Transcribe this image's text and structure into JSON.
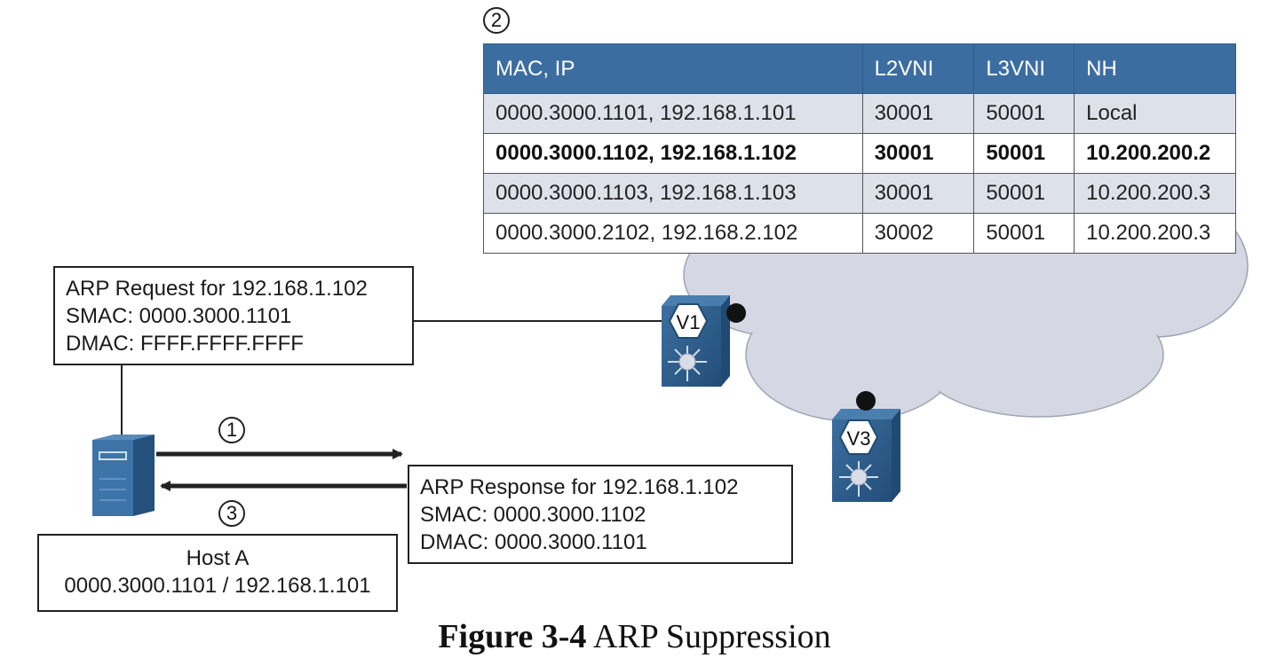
{
  "steps": {
    "one": "1",
    "two": "2",
    "three": "3"
  },
  "table": {
    "headers": [
      "MAC, IP",
      "L2VNI",
      "L3VNI",
      "NH"
    ],
    "rows": [
      [
        "0000.3000.1101, 192.168.1.101",
        "30001",
        "50001",
        "Local"
      ],
      [
        "0000.3000.1102, 192.168.1.102",
        "30001",
        "50001",
        "10.200.200.2"
      ],
      [
        "0000.3000.1103, 192.168.1.103",
        "30001",
        "50001",
        "10.200.200.3"
      ],
      [
        "0000.3000.2102, 192.168.2.102",
        "30002",
        "50001",
        "10.200.200.3"
      ]
    ]
  },
  "arp_request": {
    "line1": "ARP Request for 192.168.1.102",
    "line2": "SMAC: 0000.3000.1101",
    "line3": "DMAC: FFFF.FFFF.FFFF"
  },
  "arp_response": {
    "line1": "ARP Response for 192.168.1.102",
    "line2": "SMAC: 0000.3000.1102",
    "line3": "DMAC: 0000.3000.1101"
  },
  "host": {
    "name": "Host A",
    "address": "0000.3000.1101 / 192.168.1.101"
  },
  "switches": {
    "v1": "V1",
    "v3": "V3"
  },
  "caption": {
    "label": "Figure 3-4",
    "title": "ARP Suppression"
  },
  "colors": {
    "header": "#3c6da1",
    "switch": "#2f5f8f",
    "cloud": "#d5d8e3",
    "row_shade": "#dde1ea"
  }
}
